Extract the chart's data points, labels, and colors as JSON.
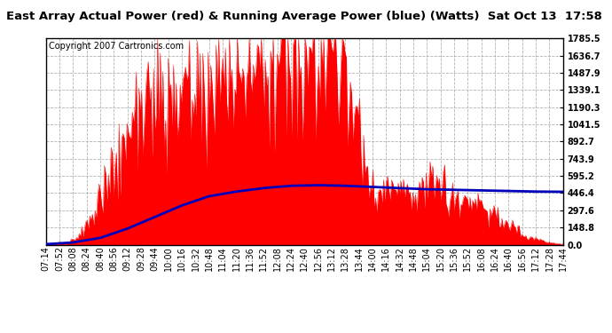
{
  "title": "East Array Actual Power (red) & Running Average Power (blue) (Watts)  Sat Oct 13  17:58",
  "copyright": "Copyright 2007 Cartronics.com",
  "ylabel_right_values": [
    0.0,
    148.8,
    297.6,
    446.4,
    595.2,
    743.9,
    892.7,
    1041.5,
    1190.3,
    1339.1,
    1487.9,
    1636.7,
    1785.5
  ],
  "ymax": 1785.5,
  "ymin": 0.0,
  "bar_color": "#FF0000",
  "avg_color": "#0000BB",
  "bg_color": "#FFFFFF",
  "grid_color": "#AAAAAA",
  "title_bg": "#D4D4D4",
  "title_fontsize": 9.5,
  "copyright_fontsize": 7.0,
  "tick_label_fontsize": 7.0,
  "x_tick_labels": [
    "07:14",
    "07:52",
    "08:08",
    "08:24",
    "08:40",
    "08:56",
    "09:12",
    "09:28",
    "09:44",
    "10:00",
    "10:16",
    "10:32",
    "10:48",
    "11:04",
    "11:20",
    "11:36",
    "11:52",
    "12:08",
    "12:24",
    "12:40",
    "12:56",
    "13:12",
    "13:28",
    "13:44",
    "14:00",
    "14:16",
    "14:32",
    "14:48",
    "15:04",
    "15:20",
    "15:36",
    "15:52",
    "16:08",
    "16:24",
    "16:40",
    "16:56",
    "17:12",
    "17:28",
    "17:44"
  ],
  "avg_x": [
    0,
    2,
    4,
    6,
    8,
    10,
    12,
    14,
    16,
    18,
    20,
    22,
    24,
    26,
    28,
    30,
    32,
    34,
    36,
    38
  ],
  "avg_y": [
    5,
    20,
    60,
    140,
    240,
    340,
    420,
    460,
    490,
    510,
    515,
    510,
    500,
    490,
    480,
    475,
    470,
    465,
    460,
    458
  ]
}
